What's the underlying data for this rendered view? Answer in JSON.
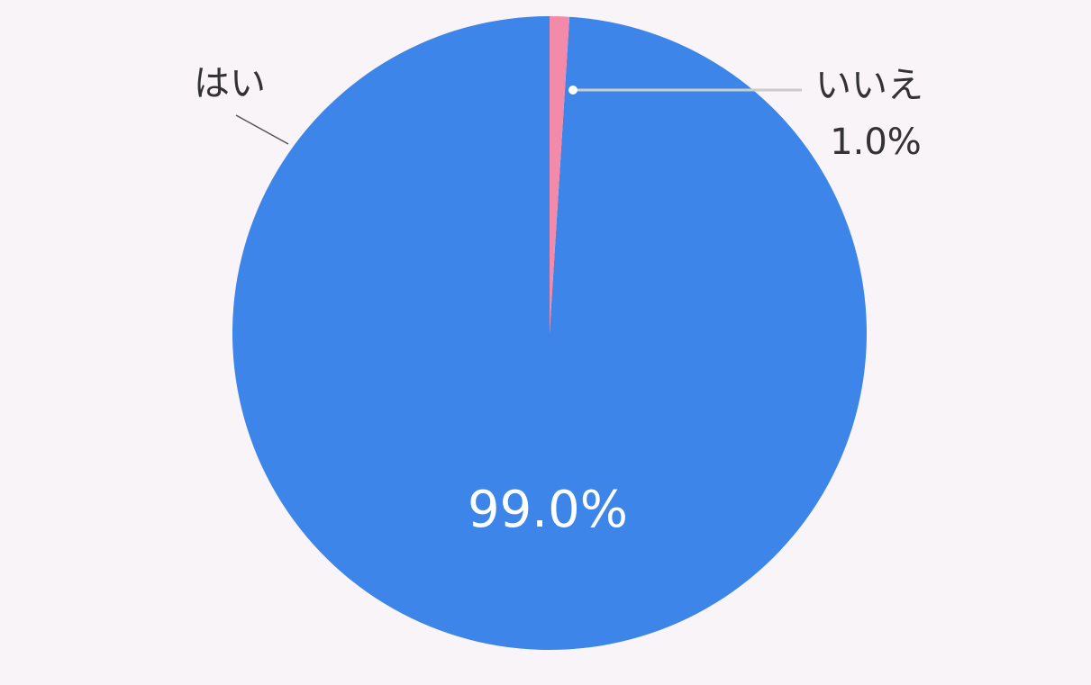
{
  "chart_data": {
    "type": "pie",
    "categories": [
      "はい",
      "いいえ"
    ],
    "values": [
      99.0,
      1.0
    ],
    "value_labels": [
      "99.0%",
      "1.0%"
    ],
    "colors": [
      "#3d85e8",
      "#f48aaa"
    ]
  }
}
